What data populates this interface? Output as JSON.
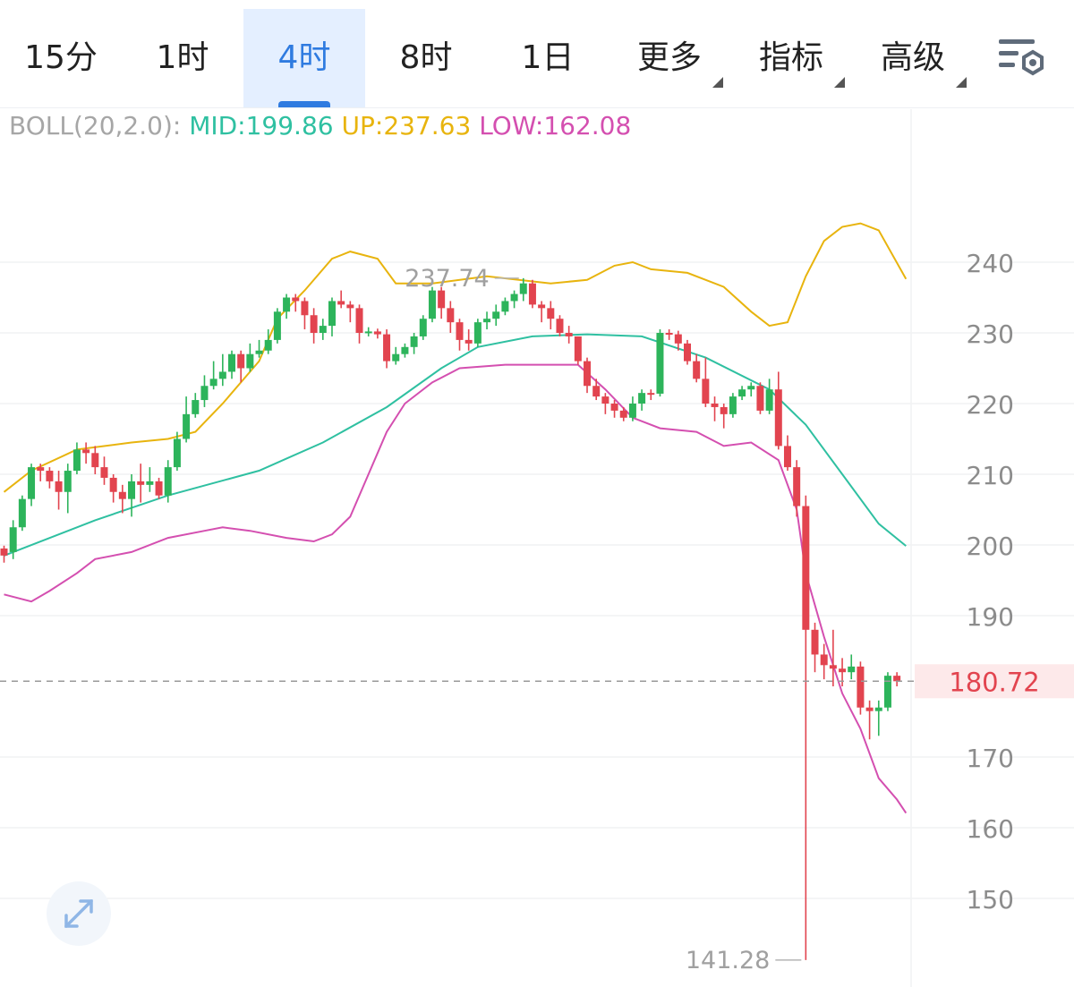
{
  "tabs": [
    {
      "label": "15分",
      "active": false
    },
    {
      "label": "1时",
      "active": false
    },
    {
      "label": "4时",
      "active": true
    },
    {
      "label": "8时",
      "active": false
    },
    {
      "label": "1日",
      "active": false
    },
    {
      "label": "更多",
      "active": false
    },
    {
      "label": "指标",
      "active": false
    },
    {
      "label": "高级",
      "active": false
    }
  ],
  "toolbar": {
    "settings_icon": "chart-settings-icon"
  },
  "indicator": {
    "name": "BOLL(20,2.0):",
    "mid_label": "MID:199.86",
    "up_label": "UP:237.63",
    "low_label": "LOW:162.08",
    "name_color": "#a6a6a6",
    "mid_color": "#2fc0a1",
    "up_color": "#e8b40e",
    "low_color": "#d44fb0"
  },
  "chart_data": {
    "type": "candlestick",
    "ylim": [
      138,
      255
    ],
    "yticks": [
      240,
      230,
      220,
      210,
      200,
      190,
      170,
      160,
      150
    ],
    "last_price": 180.72,
    "last_price_label": "180.72",
    "high_marker": {
      "value": 237.74,
      "label": "237.74"
    },
    "low_marker": {
      "value": 141.28,
      "label": "141.28"
    },
    "up_color": "#2db45b",
    "down_color": "#e2444f",
    "candles": [
      [
        199.5,
        198.5,
        199.9,
        197.5
      ],
      [
        199.0,
        202.5,
        203.5,
        198.0
      ],
      [
        202.5,
        206.5,
        207.0,
        202.0
      ],
      [
        206.5,
        211.0,
        211.5,
        205.5
      ],
      [
        211.0,
        210.5,
        211.5,
        209.0
      ],
      [
        210.5,
        209.0,
        211.0,
        208.0
      ],
      [
        209.0,
        207.5,
        210.5,
        205.0
      ],
      [
        207.5,
        210.5,
        211.5,
        204.5
      ],
      [
        210.5,
        213.5,
        214.5,
        210.0
      ],
      [
        213.5,
        213.0,
        214.5,
        211.5
      ],
      [
        213.0,
        211.0,
        214.0,
        210.0
      ],
      [
        211.0,
        209.5,
        212.5,
        208.5
      ],
      [
        209.5,
        207.5,
        210.0,
        206.0
      ],
      [
        207.5,
        206.5,
        208.5,
        204.5
      ],
      [
        206.5,
        209.0,
        210.0,
        204.0
      ],
      [
        209.0,
        208.5,
        211.5,
        206.0
      ],
      [
        208.5,
        209.0,
        211.0,
        207.5
      ],
      [
        209.0,
        207.0,
        209.5,
        206.5
      ],
      [
        207.0,
        211.0,
        212.0,
        206.0
      ],
      [
        211.0,
        215.0,
        216.0,
        210.5
      ],
      [
        215.0,
        218.5,
        221.0,
        214.5
      ],
      [
        218.5,
        220.5,
        221.5,
        218.0
      ],
      [
        220.5,
        222.5,
        224.0,
        219.5
      ],
      [
        222.5,
        223.5,
        226.0,
        222.0
      ],
      [
        223.5,
        224.5,
        227.0,
        222.5
      ],
      [
        224.5,
        227.0,
        227.5,
        223.5
      ],
      [
        227.0,
        225.0,
        227.5,
        223.0
      ],
      [
        225.0,
        227.0,
        228.5,
        224.5
      ],
      [
        227.0,
        227.5,
        229.0,
        226.5
      ],
      [
        227.5,
        229.0,
        230.5,
        227.0
      ],
      [
        229.0,
        233.0,
        233.5,
        228.5
      ],
      [
        233.0,
        235.0,
        235.5,
        232.0
      ],
      [
        235.0,
        234.5,
        235.5,
        233.0
      ],
      [
        234.5,
        232.5,
        235.0,
        230.5
      ],
      [
        232.5,
        230.0,
        233.5,
        228.5
      ],
      [
        230.0,
        231.0,
        232.0,
        229.0
      ],
      [
        231.0,
        234.5,
        235.0,
        229.5
      ],
      [
        234.5,
        234.0,
        236.0,
        233.5
      ],
      [
        234.0,
        233.5,
        234.5,
        231.5
      ],
      [
        233.5,
        230.0,
        234.0,
        228.5
      ],
      [
        230.0,
        230.2,
        230.8,
        229.5
      ],
      [
        230.2,
        229.8,
        230.6,
        229.2
      ],
      [
        229.8,
        226.0,
        230.5,
        225.0
      ],
      [
        226.0,
        227.0,
        228.0,
        225.5
      ],
      [
        227.0,
        228.0,
        228.5,
        226.5
      ],
      [
        228.0,
        229.5,
        230.0,
        227.0
      ],
      [
        229.5,
        232.0,
        232.5,
        229.0
      ],
      [
        232.0,
        236.0,
        236.5,
        231.5
      ],
      [
        236.0,
        233.5,
        236.5,
        232.0
      ],
      [
        233.5,
        231.5,
        234.5,
        230.0
      ],
      [
        231.5,
        229.0,
        232.0,
        227.5
      ],
      [
        229.0,
        228.5,
        230.5,
        227.5
      ],
      [
        228.5,
        231.5,
        232.0,
        228.0
      ],
      [
        231.5,
        232.0,
        233.0,
        230.5
      ],
      [
        232.0,
        233.0,
        234.0,
        231.0
      ],
      [
        233.0,
        234.5,
        235.0,
        232.5
      ],
      [
        234.5,
        235.5,
        236.0,
        233.5
      ],
      [
        235.5,
        237.0,
        237.74,
        234.5
      ],
      [
        237.0,
        234.0,
        237.5,
        233.5
      ],
      [
        234.0,
        233.5,
        234.5,
        231.5
      ],
      [
        233.5,
        232.0,
        234.5,
        230.5
      ],
      [
        232.0,
        230.0,
        232.5,
        229.5
      ],
      [
        230.0,
        229.5,
        231.0,
        228.5
      ],
      [
        229.5,
        226.0,
        229.5,
        225.5
      ],
      [
        226.0,
        222.5,
        226.5,
        221.5
      ],
      [
        222.5,
        221.0,
        223.5,
        220.5
      ],
      [
        221.0,
        220.0,
        221.5,
        218.5
      ],
      [
        220.0,
        219.0,
        220.5,
        218.0
      ],
      [
        219.0,
        218.0,
        219.5,
        217.5
      ],
      [
        218.0,
        220.0,
        221.0,
        217.5
      ],
      [
        220.0,
        221.5,
        222.0,
        219.0
      ],
      [
        221.5,
        221.4,
        222.0,
        220.5
      ],
      [
        221.4,
        230.0,
        230.5,
        221.0
      ],
      [
        230.0,
        229.8,
        230.5,
        229.0
      ],
      [
        229.8,
        228.5,
        230.3,
        227.5
      ],
      [
        228.5,
        226.0,
        229.0,
        225.5
      ],
      [
        226.0,
        223.5,
        227.0,
        223.0
      ],
      [
        223.5,
        220.0,
        226.5,
        219.5
      ],
      [
        220.0,
        219.5,
        221.0,
        217.5
      ],
      [
        219.5,
        218.5,
        220.0,
        216.5
      ],
      [
        218.5,
        221.0,
        221.5,
        218.0
      ],
      [
        221.0,
        222.0,
        222.5,
        220.5
      ],
      [
        222.0,
        222.5,
        223.0,
        221.0
      ],
      [
        222.5,
        219.0,
        223.0,
        218.5
      ],
      [
        219.0,
        222.0,
        223.5,
        218.5
      ],
      [
        222.0,
        214.0,
        224.5,
        213.5
      ],
      [
        214.0,
        211.0,
        215.5,
        210.5
      ],
      [
        211.0,
        205.5,
        212.0,
        204.0
      ],
      [
        205.5,
        188.0,
        207.0,
        141.28
      ],
      [
        188.0,
        184.5,
        189.0,
        182.0
      ],
      [
        184.5,
        183.0,
        186.0,
        181.0
      ],
      [
        183.0,
        182.5,
        188.0,
        180.0
      ],
      [
        182.5,
        182.0,
        184.0,
        180.0
      ],
      [
        182.0,
        182.8,
        184.5,
        181.0
      ],
      [
        182.8,
        177.0,
        183.5,
        176.0
      ],
      [
        177.0,
        176.5,
        178.0,
        172.5
      ],
      [
        176.5,
        177.0,
        178.0,
        173.0
      ],
      [
        177.0,
        181.5,
        182.0,
        176.5
      ],
      [
        181.5,
        180.72,
        182.0,
        180.0
      ]
    ],
    "mid": [
      [
        0,
        198.5
      ],
      [
        10,
        203.5
      ],
      [
        18,
        207.0
      ],
      [
        28,
        210.5
      ],
      [
        35,
        214.5
      ],
      [
        42,
        219.5
      ],
      [
        48,
        225.0
      ],
      [
        52,
        228.0
      ],
      [
        58,
        229.5
      ],
      [
        64,
        229.8
      ],
      [
        70,
        229.5
      ],
      [
        77,
        226.5
      ],
      [
        84,
        222.0
      ],
      [
        88,
        217.0
      ],
      [
        92,
        210.0
      ],
      [
        96,
        203.0
      ],
      [
        99,
        199.86
      ]
    ],
    "upper": [
      [
        0,
        207.5
      ],
      [
        3,
        210.5
      ],
      [
        8,
        213.5
      ],
      [
        14,
        214.5
      ],
      [
        18,
        215.0
      ],
      [
        21,
        216.0
      ],
      [
        24,
        220.0
      ],
      [
        28,
        226.0
      ],
      [
        30,
        232.0
      ],
      [
        33,
        236.0
      ],
      [
        36,
        240.5
      ],
      [
        38,
        241.5
      ],
      [
        41,
        240.5
      ],
      [
        43,
        237.0
      ],
      [
        47,
        237.0
      ],
      [
        53,
        238.0
      ],
      [
        60,
        237.0
      ],
      [
        64,
        237.5
      ],
      [
        67,
        239.5
      ],
      [
        69,
        240.0
      ],
      [
        71,
        239.0
      ],
      [
        75,
        238.5
      ],
      [
        79,
        236.5
      ],
      [
        82,
        233.0
      ],
      [
        84,
        231.0
      ],
      [
        86,
        231.5
      ],
      [
        88,
        238.0
      ],
      [
        90,
        243.0
      ],
      [
        92,
        245.0
      ],
      [
        94,
        245.5
      ],
      [
        96,
        244.5
      ],
      [
        99,
        237.63
      ]
    ],
    "lower": [
      [
        0,
        193.0
      ],
      [
        3,
        192.0
      ],
      [
        5,
        193.5
      ],
      [
        8,
        196.0
      ],
      [
        10,
        198.0
      ],
      [
        14,
        199.0
      ],
      [
        18,
        201.0
      ],
      [
        22,
        202.0
      ],
      [
        24,
        202.5
      ],
      [
        27,
        202.0
      ],
      [
        31,
        201.0
      ],
      [
        34,
        200.5
      ],
      [
        36,
        201.5
      ],
      [
        38,
        204.0
      ],
      [
        40,
        210.0
      ],
      [
        42,
        216.0
      ],
      [
        44,
        220.0
      ],
      [
        47,
        223.0
      ],
      [
        50,
        225.0
      ],
      [
        55,
        225.5
      ],
      [
        63,
        225.5
      ],
      [
        66,
        222.0
      ],
      [
        69,
        218.0
      ],
      [
        72,
        216.5
      ],
      [
        76,
        216.0
      ],
      [
        79,
        214.0
      ],
      [
        82,
        214.5
      ],
      [
        85,
        212.0
      ],
      [
        87,
        205.0
      ],
      [
        88,
        196.0
      ],
      [
        90,
        187.0
      ],
      [
        92,
        179.0
      ],
      [
        94,
        174.0
      ],
      [
        96,
        167.0
      ],
      [
        98,
        164.0
      ],
      [
        99,
        162.08
      ]
    ]
  }
}
